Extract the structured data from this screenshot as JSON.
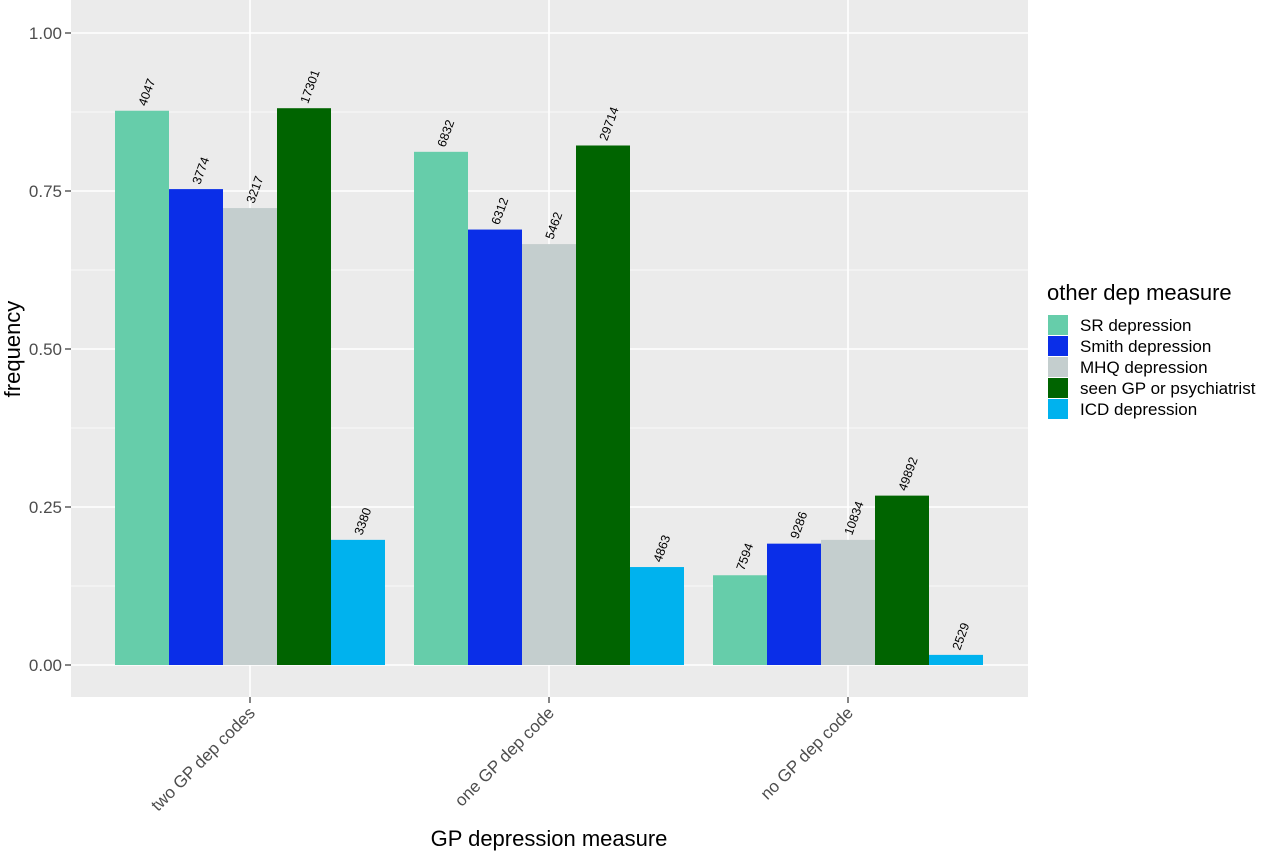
{
  "chart_data": {
    "type": "bar",
    "xlabel": "GP depression measure",
    "ylabel": "frequency",
    "ylim": [
      0,
      1.0
    ],
    "yticks": [
      "0.00",
      "0.25",
      "0.50",
      "0.75",
      "1.00"
    ],
    "grid": true,
    "categories": [
      "two GP dep codes",
      "one GP dep code",
      "no GP dep code"
    ],
    "legend": {
      "title": "other dep measure",
      "position": "right"
    },
    "series": [
      {
        "name": "SR depression",
        "color": "#66CDAA",
        "values": [
          0.877,
          0.812,
          0.142
        ],
        "labels": [
          "4047",
          "6832",
          "7594"
        ]
      },
      {
        "name": "Smith depression",
        "color": "#0A2EE8",
        "values": [
          0.753,
          0.689,
          0.192
        ],
        "labels": [
          "3774",
          "6312",
          "9286"
        ]
      },
      {
        "name": "MHQ depression",
        "color": "#C4CECE",
        "values": [
          0.723,
          0.666,
          0.198
        ],
        "labels": [
          "3217",
          "5462",
          "10834"
        ]
      },
      {
        "name": "seen GP or psychiatrist",
        "color": "#006400",
        "values": [
          0.881,
          0.822,
          0.268
        ],
        "labels": [
          "17301",
          "29714",
          "49892"
        ]
      },
      {
        "name": "ICD depression",
        "color": "#00B2EE",
        "values": [
          0.198,
          0.155,
          0.016
        ],
        "labels": [
          "3380",
          "4863",
          "2529"
        ]
      }
    ]
  }
}
